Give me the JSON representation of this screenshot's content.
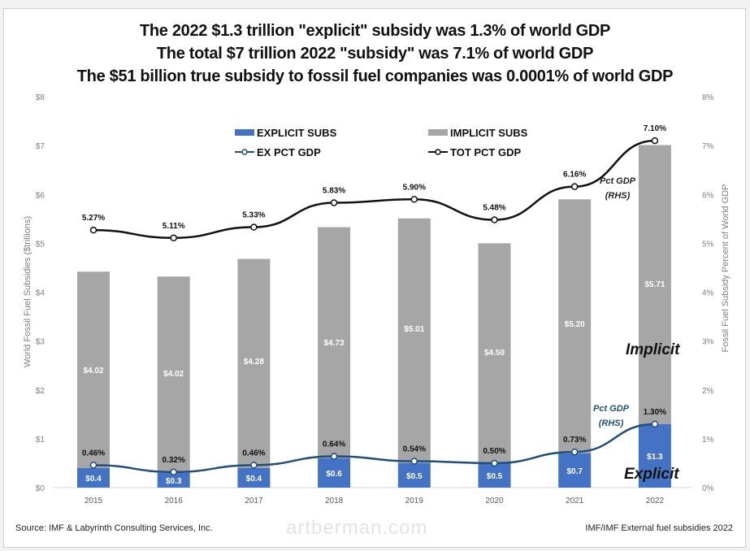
{
  "titles": [
    "The 2022 $1.3 trillion \"explicit\" subsidy was 1.3% of world GDP",
    "The total $7 trillion 2022 \"subsidy\" was 7.1% of world GDP",
    "The $51 billion true subsidy to fossil fuel companies was 0.0001% of world GDP"
  ],
  "footer": {
    "source": "Source: IMF & Labyrinth Consulting Services, Inc.",
    "watermark": "artberman.com",
    "right_note": "IMF/IMF External fuel subsidies 2022"
  },
  "colors": {
    "explicit": "#4472c4",
    "implicit": "#a6a6a6",
    "ex_line": "#1f4e79",
    "tot_line": "#111111",
    "axis_text": "#7f7f7f"
  },
  "chart_data": {
    "type": "bar",
    "stacked": true,
    "categories": [
      "2015",
      "2016",
      "2017",
      "2018",
      "2019",
      "2020",
      "2021",
      "2022"
    ],
    "series": [
      {
        "name": "EXPLICIT SUBS",
        "axis": "left",
        "kind": "bar",
        "values": [
          0.4,
          0.3,
          0.4,
          0.6,
          0.5,
          0.5,
          0.7,
          1.3
        ],
        "labels": [
          "$0.4",
          "$0.3",
          "$0.4",
          "$0.6",
          "$0.5",
          "$0.5",
          "$0.7",
          "$1.3"
        ]
      },
      {
        "name": "IMPLICIT SUBS",
        "axis": "left",
        "kind": "bar",
        "values": [
          4.02,
          4.02,
          4.28,
          4.73,
          5.01,
          4.5,
          5.2,
          5.71
        ],
        "labels": [
          "$4.02",
          "$4.02",
          "$4.28",
          "$4.73",
          "$5.01",
          "$4.50",
          "$5.20",
          "$5.71"
        ]
      },
      {
        "name": "EX PCT GDP",
        "axis": "right",
        "kind": "line",
        "values": [
          0.46,
          0.32,
          0.46,
          0.64,
          0.54,
          0.5,
          0.73,
          1.3
        ],
        "labels": [
          "0.46%",
          "0.32%",
          "0.46%",
          "0.64%",
          "0.54%",
          "0.50%",
          "0.73%",
          "1.30%"
        ]
      },
      {
        "name": "TOT PCT GDP",
        "axis": "right",
        "kind": "line",
        "values": [
          5.27,
          5.11,
          5.33,
          5.83,
          5.9,
          5.48,
          6.16,
          7.1
        ],
        "labels": [
          "5.27%",
          "5.11%",
          "5.33%",
          "5.83%",
          "5.90%",
          "5.48%",
          "6.16%",
          "7.10%"
        ]
      }
    ],
    "ylabel": "World Fossil Fuel Subsidies ($trillions)",
    "ylabel_right": "Fossil Fuel Subsidy Percent of World GDP",
    "ylim": [
      0,
      8
    ],
    "ylim_right": [
      0,
      8
    ],
    "yticks": [
      "$0",
      "$1",
      "$2",
      "$3",
      "$4",
      "$5",
      "$6",
      "$7",
      "$8"
    ],
    "yticks_right": [
      "0%",
      "1%",
      "2%",
      "3%",
      "4%",
      "5%",
      "6%",
      "7%",
      "8%"
    ],
    "grid": false,
    "legend": "top-center",
    "annotations": {
      "implicit": "Implicit",
      "explicit": "Explicit",
      "tot_pct": "Pct GDP",
      "tot_rhs": "(RHS)",
      "ex_pct": "Pct GDP",
      "ex_rhs": "(RHS)"
    }
  }
}
